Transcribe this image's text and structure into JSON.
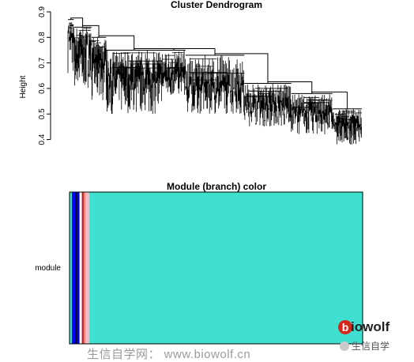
{
  "chart_data": [
    {
      "type": "dendrogram",
      "title": "Cluster Dendrogram",
      "ylabel": "Height",
      "ylim": [
        0.38,
        0.9
      ],
      "yticks": [
        0.4,
        0.5,
        0.6,
        0.7,
        0.8,
        0.9
      ],
      "ytick_labels": [
        "0.4",
        "0.5",
        "0.6",
        "0.7",
        "0.8",
        "0.9"
      ],
      "groups": [
        {
          "x_range": [
            0.0,
            0.02
          ],
          "merge": 0.87,
          "leaf_min": 0.66,
          "leaf_max": 0.83,
          "density": 10
        },
        {
          "x_range": [
            0.02,
            0.08
          ],
          "merge": 0.84,
          "leaf_min": 0.6,
          "leaf_max": 0.79,
          "density": 40
        },
        {
          "x_range": [
            0.08,
            0.13
          ],
          "merge": 0.8,
          "leaf_min": 0.55,
          "leaf_max": 0.72,
          "density": 35
        },
        {
          "x_range": [
            0.13,
            0.32
          ],
          "merge": 0.75,
          "leaf_min": 0.5,
          "leaf_max": 0.66,
          "density": 120
        },
        {
          "x_range": [
            0.32,
            0.4
          ],
          "merge": 0.75,
          "leaf_min": 0.57,
          "leaf_max": 0.67,
          "density": 45
        },
        {
          "x_range": [
            0.4,
            0.6
          ],
          "merge": 0.73,
          "leaf_min": 0.5,
          "leaf_max": 0.62,
          "density": 110
        },
        {
          "x_range": [
            0.6,
            0.76
          ],
          "merge": 0.62,
          "leaf_min": 0.45,
          "leaf_max": 0.55,
          "density": 90
        },
        {
          "x_range": [
            0.76,
            0.9
          ],
          "merge": 0.58,
          "leaf_min": 0.42,
          "leaf_max": 0.52,
          "density": 80
        },
        {
          "x_range": [
            0.9,
            1.0
          ],
          "merge": 0.52,
          "leaf_min": 0.38,
          "leaf_max": 0.47,
          "density": 70
        }
      ]
    },
    {
      "type": "heatmap",
      "title": "Module (branch) color",
      "row_label": "module",
      "bands": [
        {
          "color": "#40e0d0",
          "fraction": 0.008
        },
        {
          "color": "#0000ff",
          "fraction": 0.012
        },
        {
          "color": "#000000",
          "fraction": 0.004
        },
        {
          "color": "#0000cd",
          "fraction": 0.01
        },
        {
          "color": "#ffffff",
          "fraction": 0.008
        },
        {
          "color": "#a52a2a",
          "fraction": 0.006
        },
        {
          "color": "#fa8072",
          "fraction": 0.006
        },
        {
          "color": "#ffb6c1",
          "fraction": 0.008
        },
        {
          "color": "#d8c8c8",
          "fraction": 0.006
        },
        {
          "color": "#40e0d0",
          "fraction": 0.932
        }
      ]
    }
  ],
  "watermark": {
    "logo_o": "b",
    "logo_rest": "iowolf",
    "footer": "生信自学网：  www.biowolf.cn",
    "wechat": "生信自学"
  }
}
